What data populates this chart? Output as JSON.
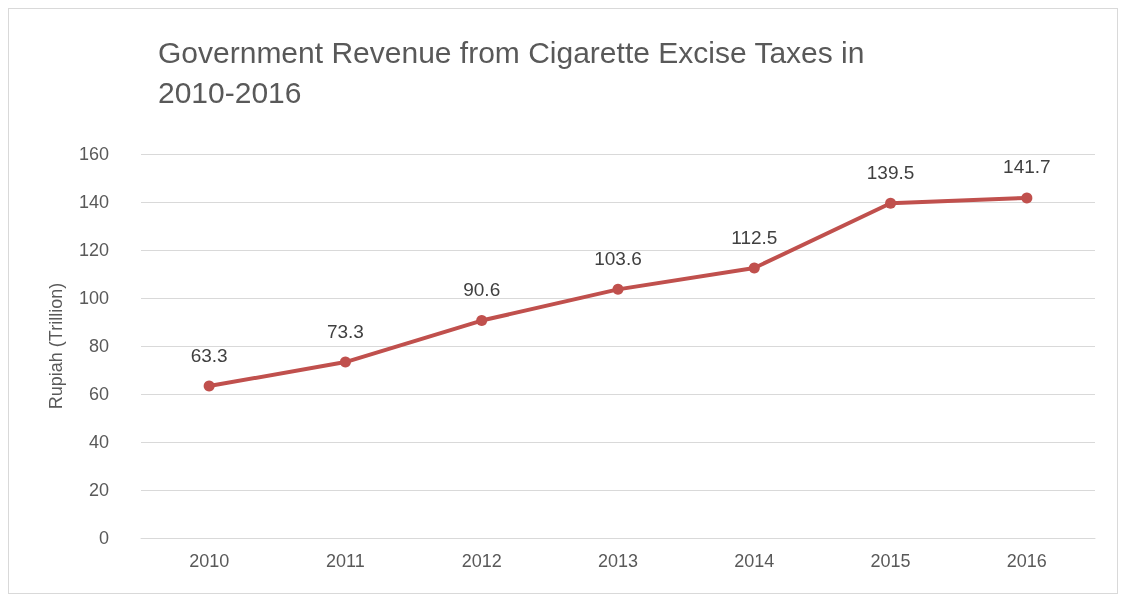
{
  "chart_data": {
    "type": "line",
    "title": "Government Revenue from Cigarette Excise Taxes in 2010-2016",
    "ylabel": "Rupiah (Trillion)",
    "categories": [
      "2010",
      "2011",
      "2012",
      "2013",
      "2014",
      "2015",
      "2016"
    ],
    "series": [
      {
        "color": "#c0504d",
        "values": [
          63.3,
          73.3,
          90.6,
          103.6,
          112.5,
          139.5,
          141.7
        ]
      }
    ],
    "ylim": [
      0,
      160
    ],
    "yticks": [
      0,
      20,
      40,
      60,
      80,
      100,
      120,
      140,
      160
    ],
    "grid": "y",
    "data_labels": true,
    "marker": "circle",
    "line_style": "solid"
  }
}
